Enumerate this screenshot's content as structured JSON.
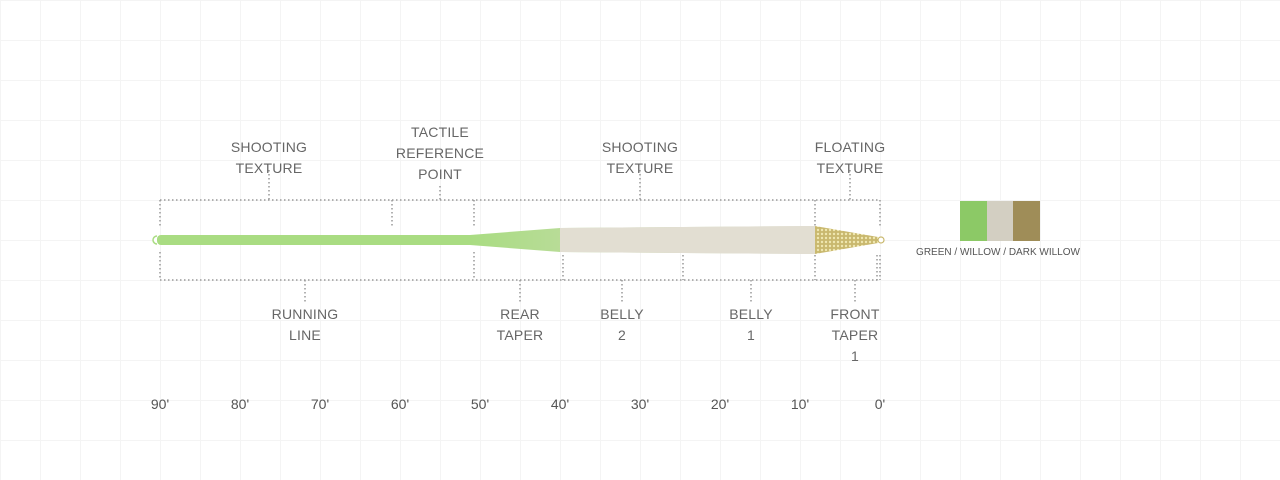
{
  "labels_top": [
    {
      "text": "SHOOTING\nTEXTURE"
    },
    {
      "text": "TACTILE\nREFERENCE\nPOINT"
    },
    {
      "text": "SHOOTING\nTEXTURE"
    },
    {
      "text": "FLOATING\nTEXTURE"
    }
  ],
  "labels_bottom": [
    {
      "text": "RUNNING\nLINE"
    },
    {
      "text": "REAR\nTAPER"
    },
    {
      "text": "BELLY\n2"
    },
    {
      "text": "BELLY\n1"
    },
    {
      "text": "FRONT\nTAPER\n1"
    }
  ],
  "scale": [
    "90'",
    "80'",
    "70'",
    "60'",
    "50'",
    "40'",
    "30'",
    "20'",
    "10'",
    "0'"
  ],
  "colors": {
    "green": "#8cc966",
    "willow": "#d3cfc2",
    "dark_willow": "#9f8d58",
    "running_line": "#a9dc82"
  },
  "legend": {
    "caption": "GREEN / WILLOW / DARK WILLOW"
  }
}
